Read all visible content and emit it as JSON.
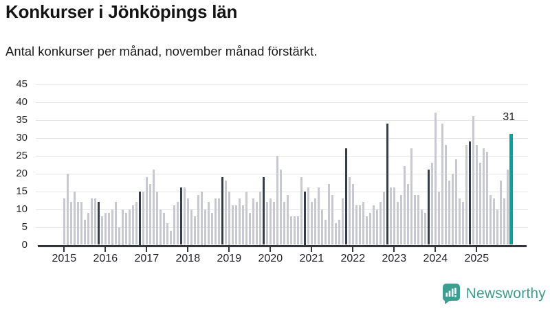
{
  "header": {
    "title": "Konkurser i Jönköpings län",
    "subtitle": "Antal konkurser per månad, november månad förstärkt."
  },
  "footer": {
    "brand": "Newsworthy",
    "brand_color": "#3c9e90"
  },
  "chart_data": {
    "type": "bar",
    "title": "Konkurser i Jönköpings län",
    "subtitle": "Antal konkurser per månad, november månad förstärkt.",
    "xlabel": "",
    "ylabel": "",
    "ylim": [
      0,
      45
    ],
    "y_ticks": [
      0,
      5,
      10,
      15,
      20,
      25,
      30,
      35,
      40,
      45
    ],
    "x_tick_labels": [
      "2015",
      "2016",
      "2017",
      "2018",
      "2019",
      "2020",
      "2021",
      "2022",
      "2023",
      "2024",
      "2025"
    ],
    "grid": "horizontal",
    "legend": "none",
    "highlight_rule": "november-months-darkened, latest-month-teal",
    "annotation": {
      "text": "31",
      "target": "2025-11"
    },
    "colors": {
      "regular": "#c8c8d2",
      "november": "#363c4a",
      "latest": "#00a59c",
      "gridline": "#e4e4e7",
      "axis": "#34353d"
    },
    "series": [
      {
        "name": "Antal konkurser per månad",
        "start": "2015-01",
        "years": [
          {
            "year": 2015,
            "values": [
              13,
              20,
              12,
              15,
              12,
              12,
              7,
              9,
              13,
              13,
              12,
              8
            ]
          },
          {
            "year": 2016,
            "values": [
              9,
              9,
              10,
              12,
              5,
              10,
              9,
              10,
              11,
              12,
              15,
              15
            ]
          },
          {
            "year": 2017,
            "values": [
              19,
              17,
              21,
              15,
              10,
              9,
              6,
              4,
              11,
              12,
              16,
              16
            ]
          },
          {
            "year": 2018,
            "values": [
              13,
              10,
              8,
              14,
              15,
              10,
              12,
              9,
              13,
              13,
              19,
              18
            ]
          },
          {
            "year": 2019,
            "values": [
              15,
              11,
              11,
              13,
              11,
              15,
              9,
              13,
              12,
              15,
              19,
              12
            ]
          },
          {
            "year": 2020,
            "values": [
              13,
              12,
              25,
              21,
              12,
              14,
              8,
              8,
              8,
              19,
              15,
              16
            ]
          },
          {
            "year": 2021,
            "values": [
              12,
              13,
              16,
              10,
              7,
              17,
              14,
              6,
              7,
              13,
              27,
              19
            ]
          },
          {
            "year": 2022,
            "values": [
              17,
              11,
              11,
              12,
              8,
              9,
              11,
              10,
              12,
              15,
              34,
              16
            ]
          },
          {
            "year": 2023,
            "values": [
              16,
              12,
              14,
              22,
              17,
              27,
              14,
              14,
              10,
              9,
              21,
              23
            ]
          },
          {
            "year": 2024,
            "values": [
              37,
              15,
              34,
              28,
              18,
              20,
              24,
              13,
              12,
              28,
              29,
              36
            ]
          },
          {
            "year": 2025,
            "values": [
              28,
              23,
              27,
              26,
              14,
              13,
              10,
              18,
              13,
              21,
              31
            ]
          }
        ]
      }
    ]
  },
  "layout_note": "last value (2025-11) drawn teal with annotation label"
}
